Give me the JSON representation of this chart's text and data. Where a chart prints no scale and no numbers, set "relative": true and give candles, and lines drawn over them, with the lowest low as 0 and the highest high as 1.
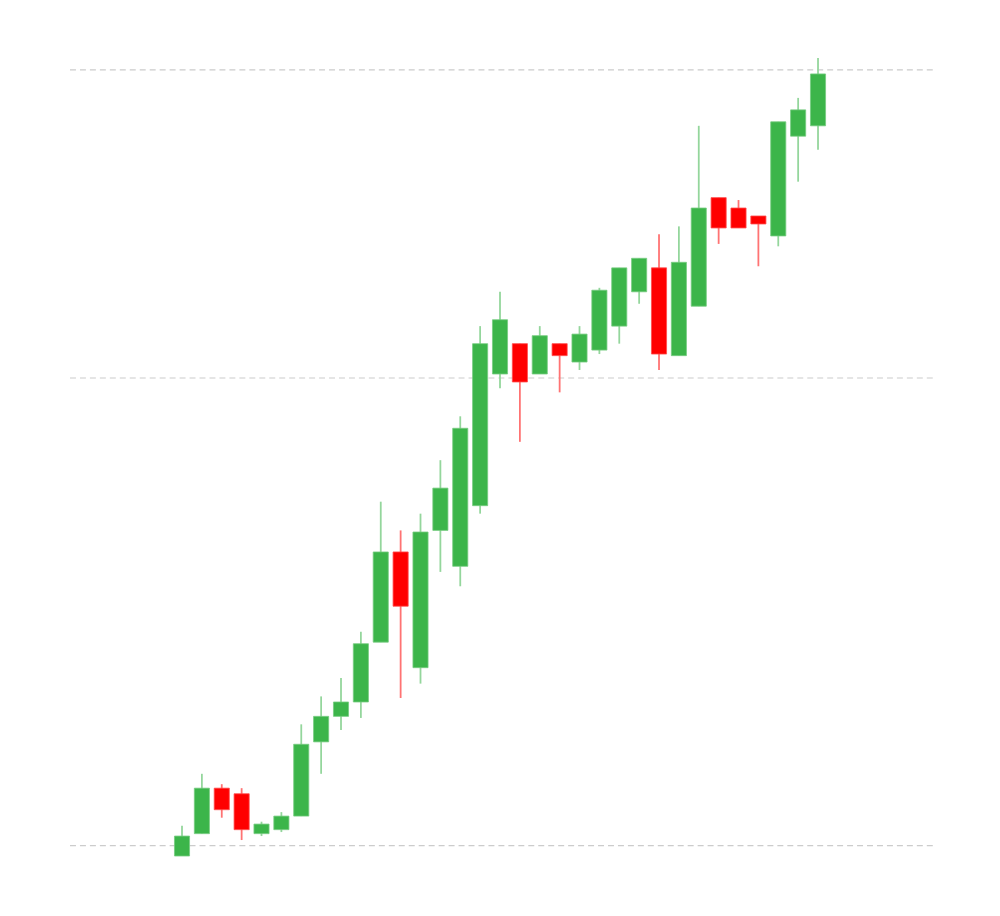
{
  "chart_data": {
    "type": "candlestick",
    "relative": true,
    "categories": [
      null,
      null,
      null,
      null,
      null,
      null,
      null,
      null,
      null,
      null,
      null,
      null,
      null,
      null,
      null,
      null,
      null,
      null,
      null,
      null,
      null,
      null,
      null,
      null,
      null,
      null,
      null,
      null,
      null,
      null,
      null,
      null,
      null
    ],
    "ohlc": [
      [
        0.0,
        0.038,
        0.0,
        0.025
      ],
      [
        0.028,
        0.103,
        0.028,
        0.085
      ],
      [
        0.085,
        0.09,
        0.048,
        0.058
      ],
      [
        0.078,
        0.085,
        0.02,
        0.033
      ],
      [
        0.028,
        0.043,
        0.025,
        0.04
      ],
      [
        0.033,
        0.055,
        0.03,
        0.05
      ],
      [
        0.05,
        0.165,
        0.05,
        0.14
      ],
      [
        0.143,
        0.2,
        0.103,
        0.175
      ],
      [
        0.175,
        0.223,
        0.158,
        0.193
      ],
      [
        0.193,
        0.281,
        0.173,
        0.266
      ],
      [
        0.268,
        0.444,
        0.268,
        0.381
      ],
      [
        0.381,
        0.408,
        0.198,
        0.313
      ],
      [
        0.236,
        0.429,
        0.216,
        0.406
      ],
      [
        0.408,
        0.496,
        0.356,
        0.461
      ],
      [
        0.363,
        0.551,
        0.338,
        0.536
      ],
      [
        0.439,
        0.664,
        0.429,
        0.642
      ],
      [
        0.604,
        0.707,
        0.586,
        0.672
      ],
      [
        0.642,
        0.642,
        0.519,
        0.594
      ],
      [
        0.604,
        0.664,
        0.604,
        0.652
      ],
      [
        0.642,
        0.642,
        0.581,
        0.627
      ],
      [
        0.619,
        0.664,
        0.609,
        0.654
      ],
      [
        0.634,
        0.712,
        0.629,
        0.709
      ],
      [
        0.664,
        0.737,
        0.642,
        0.737
      ],
      [
        0.707,
        0.749,
        0.692,
        0.749
      ],
      [
        0.737,
        0.779,
        0.609,
        0.629
      ],
      [
        0.627,
        0.789,
        0.627,
        0.744
      ],
      [
        0.689,
        0.915,
        0.689,
        0.812
      ],
      [
        0.825,
        0.825,
        0.767,
        0.787
      ],
      [
        0.812,
        0.822,
        0.787,
        0.787
      ],
      [
        0.802,
        0.802,
        0.739,
        0.792
      ],
      [
        0.777,
        0.92,
        0.764,
        0.92
      ],
      [
        0.902,
        0.95,
        0.845,
        0.935
      ],
      [
        0.915,
        1.0,
        0.885,
        0.98
      ]
    ],
    "colors": [
      "#3cb54a",
      "#3cb54a",
      "#ff0000",
      "#ff0000",
      "#3cb54a",
      "#3cb54a",
      "#3cb54a",
      "#3cb54a",
      "#3cb54a",
      "#3cb54a",
      "#3cb54a",
      "#ff0000",
      "#3cb54a",
      "#3cb54a",
      "#3cb54a",
      "#3cb54a",
      "#3cb54a",
      "#ff0000",
      "#3cb54a",
      "#ff0000",
      "#3cb54a",
      "#3cb54a",
      "#3cb54a",
      "#3cb54a",
      "#ff0000",
      "#3cb54a",
      "#3cb54a",
      "#ff0000",
      "#ff0000",
      "#ff0000",
      "#3cb54a",
      "#3cb54a",
      "#3cb54a"
    ],
    "ref_lines": [
      {
        "axis": "y",
        "value": 0.985,
        "color": "#cccccc",
        "line_style": "dashed"
      },
      {
        "axis": "y",
        "value": 0.599,
        "color": "#cccccc",
        "line_style": "dashed"
      },
      {
        "axis": "y",
        "value": 0.013,
        "color": "#cccccc",
        "line_style": "dashed"
      }
    ]
  }
}
